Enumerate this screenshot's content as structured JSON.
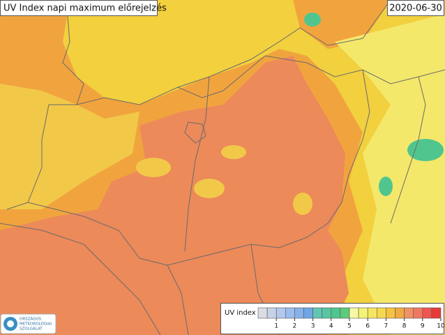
{
  "header": {
    "title": "UV Index napi maximum előrejelzés",
    "date": "2020-06-30"
  },
  "legend": {
    "title": "UV index",
    "ticks": [
      1,
      2,
      3,
      4,
      5,
      6,
      7,
      8,
      9,
      10
    ],
    "range": [
      0,
      10
    ],
    "colors": [
      "#dcdce4",
      "#c8d2e6",
      "#b2c8ec",
      "#9cbcec",
      "#86b2ec",
      "#70a6e6",
      "#62c6b4",
      "#58c6a2",
      "#50c68e",
      "#5ccc7a",
      "#f8f8a4",
      "#f6f276",
      "#f6e660",
      "#f6d850",
      "#f6c242",
      "#f0aa42",
      "#f09262",
      "#f07862",
      "#f05450",
      "#e83a3a"
    ]
  },
  "logo": {
    "lines": [
      "ORSZÁGOS",
      "METEOROLÓGIAI",
      "SZOLGÁLAT"
    ]
  }
}
